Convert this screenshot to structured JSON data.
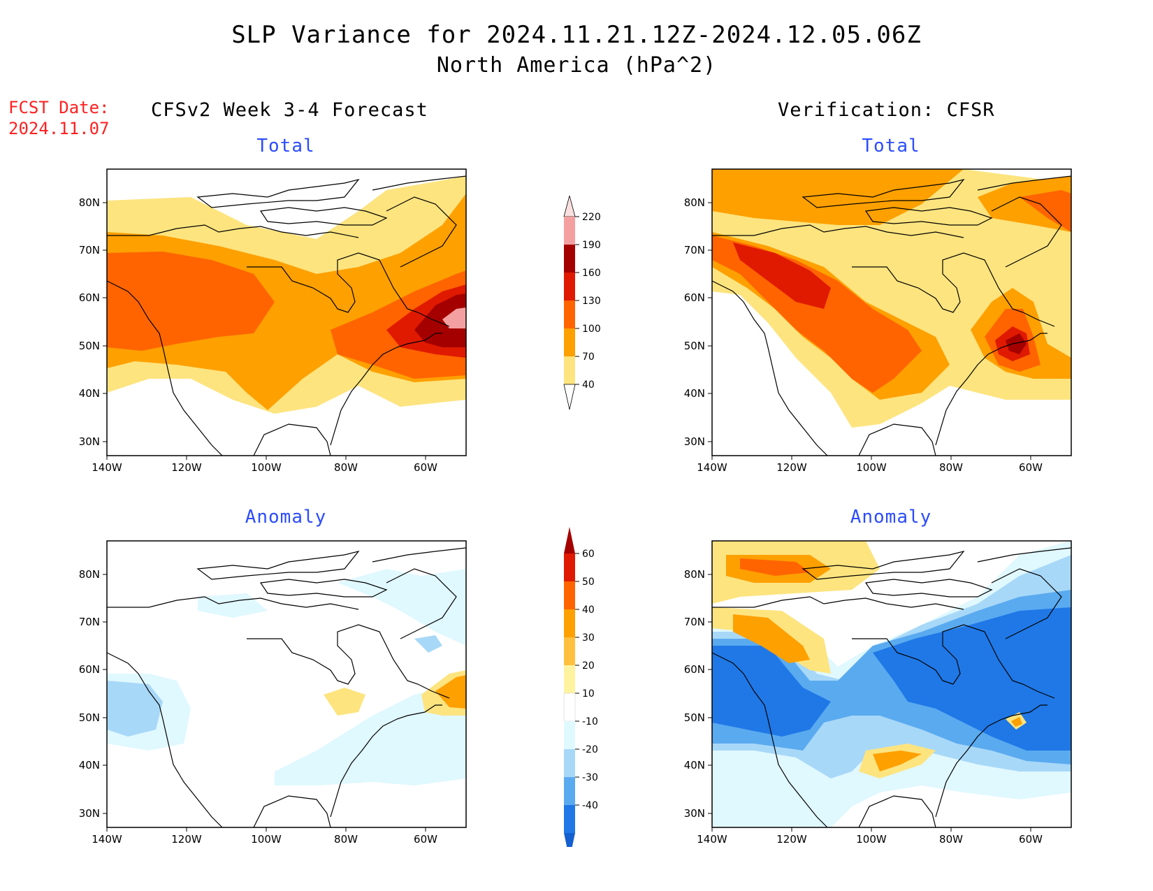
{
  "title": {
    "line1": "SLP Variance for 2024.11.21.12Z-2024.12.05.06Z",
    "line2": "North America (hPa^2)"
  },
  "forecast_date": {
    "label": "FCST Date:",
    "value": "2024.11.07"
  },
  "columns": {
    "left": "CFSv2 Week 3-4 Forecast",
    "right": "Verification: CFSR"
  },
  "panels": [
    {
      "id": "fcst-total",
      "subtitle": "Total"
    },
    {
      "id": "verif-total",
      "subtitle": "Total"
    },
    {
      "id": "fcst-anomaly",
      "subtitle": "Anomaly"
    },
    {
      "id": "verif-anomaly",
      "subtitle": "Anomaly"
    }
  ],
  "axes": {
    "lat_labels": [
      "80N",
      "70N",
      "60N",
      "50N",
      "40N",
      "30N"
    ],
    "lon_labels": [
      "140W",
      "120W",
      "100W",
      "80W",
      "60W"
    ]
  },
  "colorbars": {
    "total": {
      "levels": [
        "40",
        "70",
        "100",
        "130",
        "160",
        "190",
        "220"
      ],
      "colors": [
        "#fde47f",
        "#fea000",
        "#ff6400",
        "#e01a00",
        "#a50000",
        "#f4a0a0",
        "#fbe0e0"
      ]
    },
    "anomaly": {
      "levels": [
        "60",
        "50",
        "40",
        "30",
        "20",
        "10",
        "-10",
        "-20",
        "-30",
        "-40"
      ],
      "colors": [
        "#a50000",
        "#e01a00",
        "#ff6400",
        "#fea000",
        "#ffc040",
        "#fff3a0",
        "#ffffff",
        "#e0f8ff",
        "#a8d8f8",
        "#5aaaf0",
        "#1f78e6",
        "#1560d0"
      ]
    }
  },
  "palette": {
    "coast": "#000000",
    "light_yellow": "#fde47f",
    "orange": "#fea000",
    "dark_orange": "#ff6400",
    "red": "#e01a00",
    "dark_red": "#a50000",
    "pink": "#f4a0a0",
    "pale_blue": "#e0f8ff",
    "light_blue": "#a8d8f8",
    "mid_blue": "#5aaaf0",
    "blue": "#1f78e6",
    "deep_blue": "#1560d0"
  }
}
